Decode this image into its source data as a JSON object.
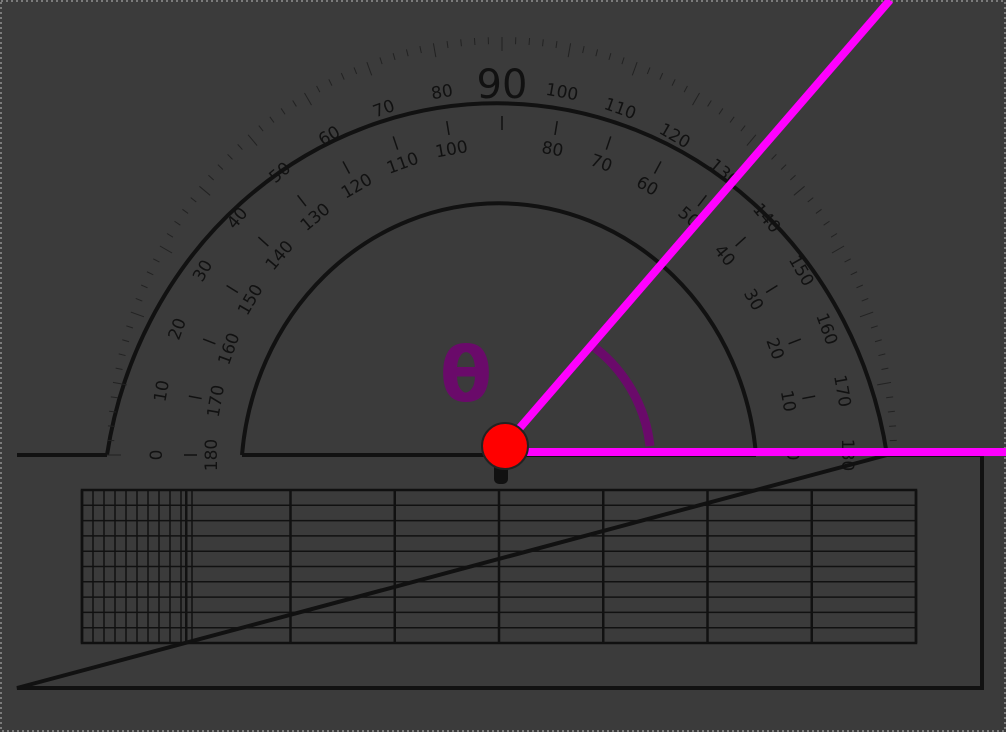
{
  "protractor": {
    "outer_scale": [
      "0",
      "10",
      "20",
      "30",
      "40",
      "50",
      "60",
      "70",
      "80",
      "90",
      "100",
      "110",
      "120",
      "130",
      "140",
      "150",
      "160",
      "170",
      "180"
    ],
    "inner_scale": [
      "180",
      "170",
      "160",
      "150",
      "140",
      "130",
      "120",
      "110",
      "100",
      "",
      "80",
      "70",
      "60",
      "50",
      "40",
      "30",
      "20",
      "10",
      "0"
    ]
  },
  "angle_label": "θ"
}
